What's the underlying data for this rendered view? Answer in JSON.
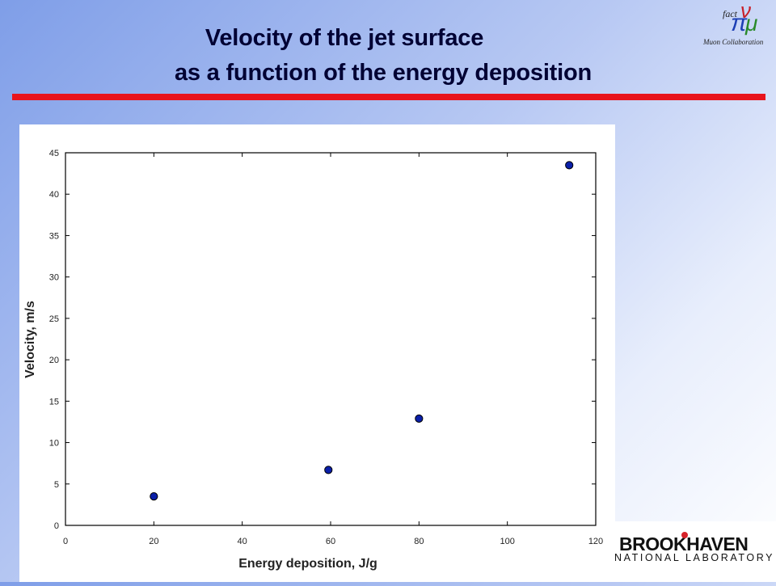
{
  "slide": {
    "title_line1": "Velocity of the jet surface",
    "title_line2": "as a function of the energy deposition",
    "accent_color": "#e8141c",
    "title_color": "#000033"
  },
  "logos": {
    "top_right": {
      "fact_text": "fact",
      "collab_text": "Muon Collaboration",
      "icon": "nu-pi-mu-logo"
    },
    "bottom_right": {
      "name": "BROOKHAVEN",
      "sub": "NATIONAL LABORATORY"
    }
  },
  "chart_data": {
    "type": "scatter",
    "xlabel": "Energy deposition, J/g",
    "ylabel": "Velocity, m/s",
    "xlim": [
      0,
      120
    ],
    "ylim": [
      0,
      45
    ],
    "xticks": [
      0,
      20,
      40,
      60,
      80,
      100,
      120
    ],
    "yticks": [
      0,
      5,
      10,
      15,
      20,
      25,
      30,
      35,
      40,
      45
    ],
    "grid": false,
    "marker_color": "#0a1fa8",
    "points": [
      {
        "x": 20,
        "y": 3.5
      },
      {
        "x": 59.5,
        "y": 6.7
      },
      {
        "x": 80,
        "y": 12.9
      },
      {
        "x": 114,
        "y": 43.5
      }
    ]
  }
}
